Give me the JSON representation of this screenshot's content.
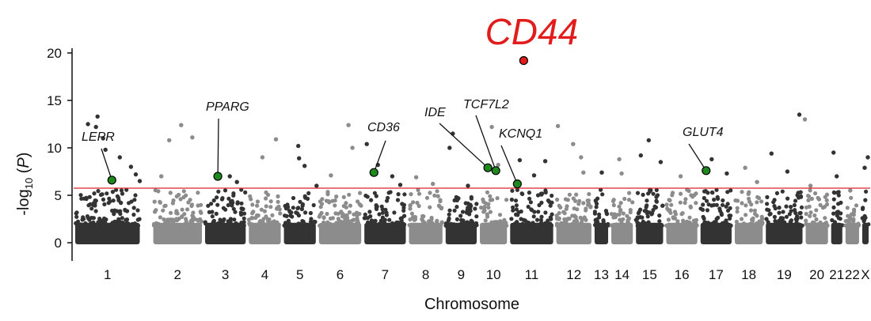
{
  "chart_data": {
    "type": "scatter",
    "subtype": "manhattan",
    "title": "CD44",
    "xlabel": "Chromosome",
    "ylabel": {
      "prefix": "-log",
      "sub": "10",
      "suffix": " (",
      "italic": "P",
      "close": ")"
    },
    "ylim": [
      0,
      21
    ],
    "yticks": [
      0,
      5,
      10,
      15,
      20
    ],
    "threshold": 5.75,
    "threshold_color": "#d9232a",
    "grid": false,
    "legend": "none",
    "colors": {
      "dark": "#333333",
      "light": "#8c8c8c",
      "hit": "#1e8a1e",
      "top_hit": "#e21b1b"
    },
    "chromosomes": [
      {
        "label": "1",
        "start": 0.0,
        "end": 0.085
      },
      {
        "label": "2",
        "start": 0.098,
        "end": 0.163
      },
      {
        "label": "3",
        "start": 0.163,
        "end": 0.218
      },
      {
        "label": "4",
        "start": 0.218,
        "end": 0.262
      },
      {
        "label": "5",
        "start": 0.262,
        "end": 0.306
      },
      {
        "label": "6",
        "start": 0.306,
        "end": 0.363
      },
      {
        "label": "7",
        "start": 0.363,
        "end": 0.419
      },
      {
        "label": "8",
        "start": 0.419,
        "end": 0.465
      },
      {
        "label": "9",
        "start": 0.465,
        "end": 0.508
      },
      {
        "label": "10",
        "start": 0.508,
        "end": 0.546
      },
      {
        "label": "11",
        "start": 0.546,
        "end": 0.604
      },
      {
        "label": "12",
        "start": 0.604,
        "end": 0.652
      },
      {
        "label": "13",
        "start": 0.652,
        "end": 0.673
      },
      {
        "label": "14",
        "start": 0.673,
        "end": 0.704
      },
      {
        "label": "15",
        "start": 0.704,
        "end": 0.742
      },
      {
        "label": "16",
        "start": 0.742,
        "end": 0.785
      },
      {
        "label": "17",
        "start": 0.785,
        "end": 0.828
      },
      {
        "label": "18",
        "start": 0.828,
        "end": 0.867
      },
      {
        "label": "19",
        "start": 0.867,
        "end": 0.917
      },
      {
        "label": "20",
        "start": 0.917,
        "end": 0.949
      },
      {
        "label": "21",
        "start": 0.949,
        "end": 0.967
      },
      {
        "label": "22",
        "start": 0.967,
        "end": 0.988
      },
      {
        "label": "X",
        "start": 0.988,
        "end": 1.0
      }
    ],
    "annotated_hits": [
      {
        "gene": "LEPR",
        "chrom": "1",
        "x": 0.048,
        "y": 6.6
      },
      {
        "gene": "PPARG",
        "chrom": "3",
        "x": 0.181,
        "y": 7.0
      },
      {
        "gene": "CD36",
        "chrom": "7",
        "x": 0.377,
        "y": 7.4
      },
      {
        "gene": "IDE",
        "chrom": "10",
        "x": 0.52,
        "y": 7.9
      },
      {
        "gene": "TCF7L2",
        "chrom": "10",
        "x": 0.53,
        "y": 7.6
      },
      {
        "gene": "KCNQ1",
        "chrom": "11",
        "x": 0.557,
        "y": 6.2
      },
      {
        "gene": "GLUT4",
        "chrom": "17",
        "x": 0.794,
        "y": 7.6
      },
      {
        "gene": "CD44",
        "chrom": "11",
        "x": 0.565,
        "y": 19.2
      }
    ],
    "extra_points": [
      {
        "x": 0.018,
        "y": 12.5
      },
      {
        "x": 0.03,
        "y": 13.3
      },
      {
        "x": 0.028,
        "y": 12.2
      },
      {
        "x": 0.04,
        "y": 9.8
      },
      {
        "x": 0.037,
        "y": 11.0
      },
      {
        "x": 0.058,
        "y": 9.0
      },
      {
        "x": 0.072,
        "y": 8.0
      },
      {
        "x": 0.078,
        "y": 7.2
      },
      {
        "x": 0.083,
        "y": 6.5
      },
      {
        "x": 0.12,
        "y": 10.8
      },
      {
        "x": 0.135,
        "y": 12.4
      },
      {
        "x": 0.149,
        "y": 11.1
      },
      {
        "x": 0.11,
        "y": 7.0
      },
      {
        "x": 0.196,
        "y": 7.0
      },
      {
        "x": 0.205,
        "y": 6.4
      },
      {
        "x": 0.237,
        "y": 9.0
      },
      {
        "x": 0.254,
        "y": 10.9
      },
      {
        "x": 0.282,
        "y": 10.2
      },
      {
        "x": 0.283,
        "y": 8.9
      },
      {
        "x": 0.29,
        "y": 8.1
      },
      {
        "x": 0.305,
        "y": 6.0
      },
      {
        "x": 0.323,
        "y": 7.1
      },
      {
        "x": 0.345,
        "y": 12.4
      },
      {
        "x": 0.35,
        "y": 10.0
      },
      {
        "x": 0.368,
        "y": 10.4
      },
      {
        "x": 0.382,
        "y": 8.2
      },
      {
        "x": 0.4,
        "y": 7.0
      },
      {
        "x": 0.41,
        "y": 6.1
      },
      {
        "x": 0.43,
        "y": 6.9
      },
      {
        "x": 0.451,
        "y": 6.2
      },
      {
        "x": 0.472,
        "y": 10.0
      },
      {
        "x": 0.476,
        "y": 11.5
      },
      {
        "x": 0.495,
        "y": 6.0
      },
      {
        "x": 0.533,
        "y": 8.2
      },
      {
        "x": 0.525,
        "y": 12.2
      },
      {
        "x": 0.578,
        "y": 7.1
      },
      {
        "x": 0.56,
        "y": 8.7
      },
      {
        "x": 0.592,
        "y": 8.6
      },
      {
        "x": 0.608,
        "y": 12.3
      },
      {
        "x": 0.627,
        "y": 10.4
      },
      {
        "x": 0.637,
        "y": 9.0
      },
      {
        "x": 0.64,
        "y": 7.4
      },
      {
        "x": 0.663,
        "y": 7.4
      },
      {
        "x": 0.685,
        "y": 8.8
      },
      {
        "x": 0.688,
        "y": 7.3
      },
      {
        "x": 0.712,
        "y": 9.2
      },
      {
        "x": 0.722,
        "y": 10.8
      },
      {
        "x": 0.737,
        "y": 8.5
      },
      {
        "x": 0.762,
        "y": 7.0
      },
      {
        "x": 0.801,
        "y": 8.8
      },
      {
        "x": 0.82,
        "y": 7.3
      },
      {
        "x": 0.843,
        "y": 7.9
      },
      {
        "x": 0.858,
        "y": 6.4
      },
      {
        "x": 0.876,
        "y": 9.4
      },
      {
        "x": 0.896,
        "y": 7.5
      },
      {
        "x": 0.911,
        "y": 13.5
      },
      {
        "x": 0.918,
        "y": 13.0
      },
      {
        "x": 0.925,
        "y": 6.0
      },
      {
        "x": 0.954,
        "y": 9.5
      },
      {
        "x": 0.958,
        "y": 7.0
      },
      {
        "x": 0.975,
        "y": 5.5
      },
      {
        "x": 0.993,
        "y": 7.9
      },
      {
        "x": 0.997,
        "y": 9.0
      }
    ]
  }
}
